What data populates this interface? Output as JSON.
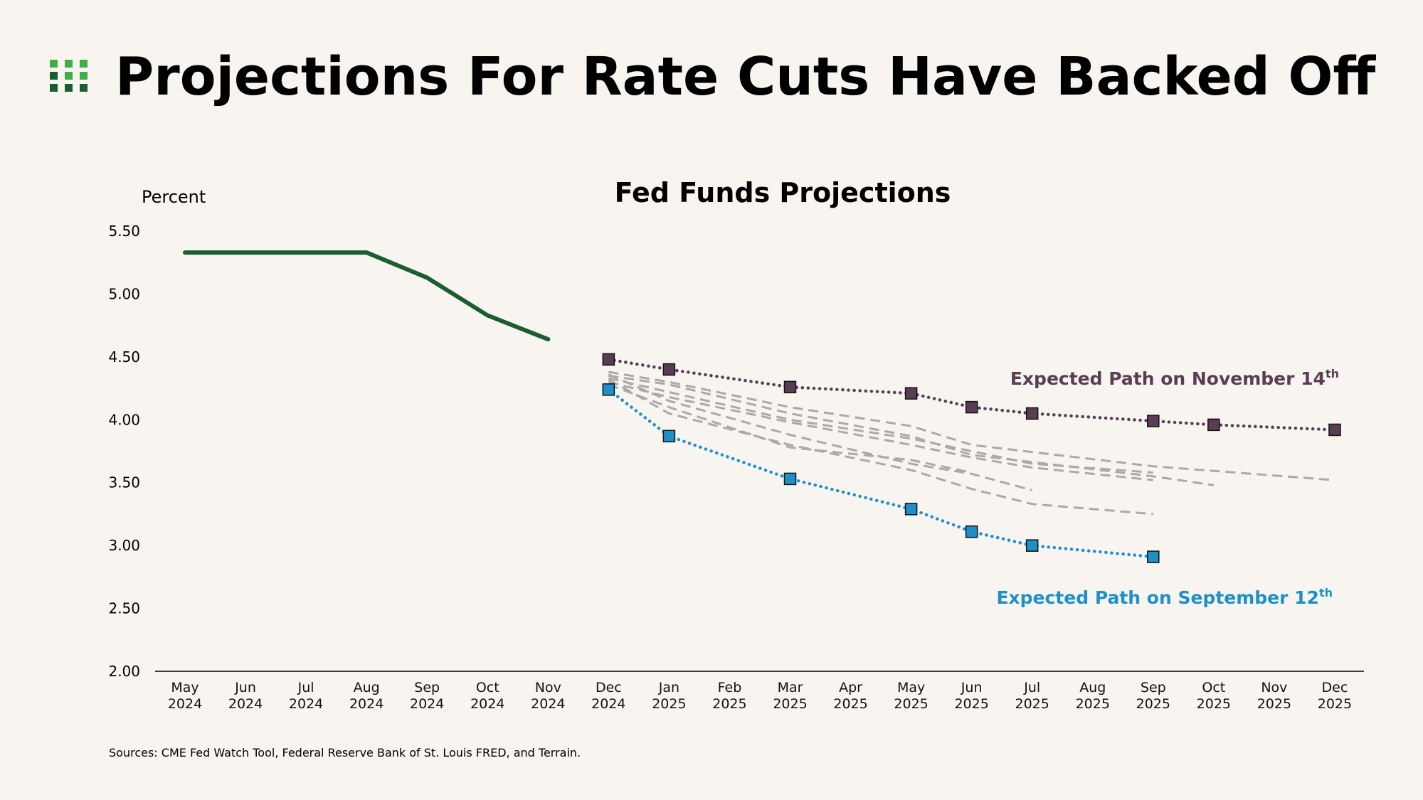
{
  "title": "Projections For Rate Cuts Have Backed Off",
  "source": "Sources: CME Fed Watch Tool, Federal Reserve Bank of St. Louis FRED, and Terrain.",
  "chart_data": {
    "type": "line",
    "title": "Fed Funds Projections",
    "y_label": "Percent",
    "categories": [
      "May 2024",
      "Jun 2024",
      "Jul 2024",
      "Aug 2024",
      "Sep 2024",
      "Oct 2024",
      "Nov 2024",
      "Dec 2024",
      "Jan 2025",
      "Feb 2025",
      "Mar 2025",
      "Apr 2025",
      "May 2025",
      "Jun 2025",
      "Jul 2025",
      "Aug 2025",
      "Sep 2025",
      "Oct 2025",
      "Nov 2025",
      "Dec 2025"
    ],
    "ylim": [
      2,
      5.5
    ],
    "yticks": [
      {
        "value": 2,
        "label": "2.00"
      },
      {
        "value": 2.5,
        "label": "2.50"
      },
      {
        "value": 3,
        "label": "3.00"
      },
      {
        "value": 3.5,
        "label": "3.50"
      },
      {
        "value": 4,
        "label": "4.00"
      },
      {
        "value": 4.5,
        "label": "4.50"
      },
      {
        "value": 5,
        "label": "5.00"
      },
      {
        "value": 5.5,
        "label": "5.50"
      }
    ],
    "series": [
      {
        "color": "#aaaaaa",
        "style": "dashed",
        "x": [
          "Dec 2024",
          "Jan 2025",
          "Mar 2025",
          "May 2025",
          "Jun 2025",
          "Sep 2025",
          "Dec 2025"
        ],
        "values": [
          4.38,
          4.3,
          4.1,
          3.95,
          3.8,
          3.63,
          3.52
        ]
      },
      {
        "color": "#aaaaaa",
        "style": "dashed",
        "x": [
          "Dec 2024",
          "Jan 2025",
          "Mar 2025",
          "May 2025",
          "Jun 2025",
          "Sep 2025",
          "Oct 2025"
        ],
        "values": [
          4.35,
          4.28,
          4.05,
          3.87,
          3.72,
          3.55,
          3.48
        ]
      },
      {
        "color": "#aaaaaa",
        "style": "dashed",
        "x": [
          "Dec 2024",
          "Jan 2025",
          "Mar 2025",
          "May 2025",
          "Jul 2025",
          "Sep 2025"
        ],
        "values": [
          4.33,
          4.22,
          4.0,
          3.85,
          3.65,
          3.58
        ]
      },
      {
        "color": "#aaaaaa",
        "style": "dashed",
        "x": [
          "Dec 2024",
          "Jan 2025",
          "Mar 2025",
          "May 2025",
          "Jun 2025",
          "Jul 2025",
          "Sep 2025"
        ],
        "values": [
          4.3,
          4.18,
          3.98,
          3.8,
          3.7,
          3.62,
          3.52
        ]
      },
      {
        "color": "#aaaaaa",
        "style": "dashed",
        "x": [
          "Dec 2024",
          "Jan 2025",
          "Mar 2025",
          "May 2025",
          "Jun 2025",
          "Jul 2025"
        ],
        "values": [
          4.36,
          4.15,
          3.88,
          3.65,
          3.57,
          3.44
        ]
      },
      {
        "color": "#aaaaaa",
        "style": "dashed",
        "x": [
          "Dec 2024",
          "Jan 2025",
          "Mar 2025",
          "May 2025",
          "Jun 2025",
          "Jul 2025",
          "Sep 2025"
        ],
        "values": [
          4.32,
          4.05,
          3.8,
          3.6,
          3.45,
          3.33,
          3.25
        ]
      },
      {
        "color": "#aaaaaa",
        "style": "dashed",
        "x": [
          "Dec 2024",
          "Jan 2025",
          "Mar 2025",
          "May 2025",
          "Jun 2025"
        ],
        "values": [
          4.28,
          4.1,
          3.78,
          3.68,
          3.58
        ]
      },
      {
        "color": "#1a5e2e",
        "style": "solid",
        "x": [
          "May 2024",
          "Jun 2024",
          "Jul 2024",
          "Aug 2024",
          "Sep 2024",
          "Oct 2024",
          "Nov 2024"
        ],
        "values": [
          5.33,
          5.33,
          5.33,
          5.33,
          5.13,
          4.83,
          4.64
        ]
      },
      {
        "color": "#5a3d55",
        "style": "dotted",
        "markers": true,
        "x": [
          "Dec 2024",
          "Jan 2025",
          "Mar 2025",
          "May 2025",
          "Jun 2025",
          "Jul 2025",
          "Sep 2025",
          "Oct 2025",
          "Dec 2025"
        ],
        "values": [
          4.48,
          4.4,
          4.26,
          4.21,
          4.1,
          4.05,
          3.99,
          3.96,
          3.92
        ]
      },
      {
        "color": "#1e90c8",
        "style": "dotted",
        "markers": true,
        "x": [
          "Dec 2024",
          "Jan 2025",
          "Mar 2025",
          "May 2025",
          "Jun 2025",
          "Jul 2025",
          "Sep 2025"
        ],
        "values": [
          4.24,
          3.87,
          3.53,
          3.29,
          3.11,
          3.0,
          2.91
        ]
      }
    ],
    "annotations": [
      {
        "text": "Expected Path on November 14",
        "sup": "th",
        "color": "#5a3d55"
      },
      {
        "text": "Expected Path on September 12",
        "sup": "th",
        "color": "#1e90c8"
      }
    ]
  }
}
